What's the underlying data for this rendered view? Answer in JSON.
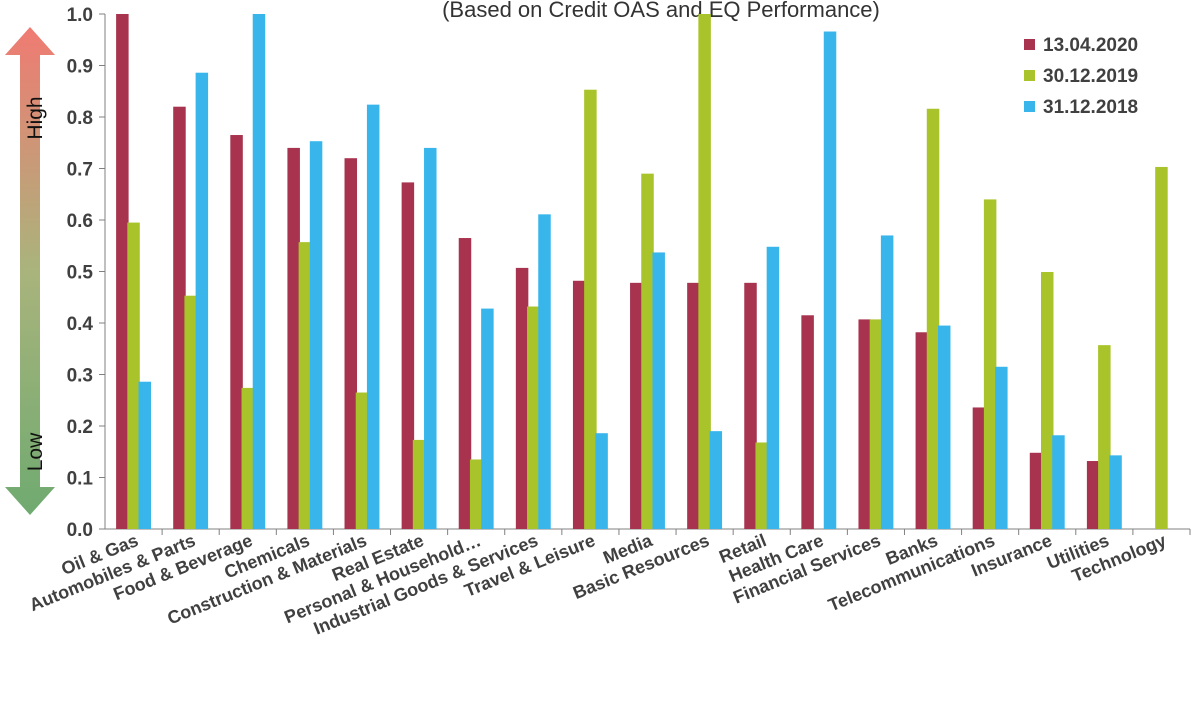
{
  "chart_data": {
    "type": "bar",
    "subtitle": "(Based on Credit OAS and EQ Performance)",
    "ylim": [
      0,
      1.0
    ],
    "yticks": [
      "0.0",
      "0.1",
      "0.2",
      "0.3",
      "0.4",
      "0.5",
      "0.6",
      "0.7",
      "0.8",
      "0.9",
      "1.0"
    ],
    "arrow_labels": {
      "high": "High",
      "low": "Low"
    },
    "legend_position": "top-right",
    "grid": false,
    "categories": [
      "Oil & Gas",
      "Automobiles & Parts",
      "Food & Beverage",
      "Chemicals",
      "Construction & Materials",
      "Real Estate",
      "Personal & Household…",
      "Industrial Goods & Services",
      "Travel & Leisure",
      "Media",
      "Basic Resources",
      "Retail",
      "Health Care",
      "Financial Services",
      "Banks",
      "Telecommunications",
      "Insurance",
      "Utilities",
      "Technology"
    ],
    "series": [
      {
        "name": "13.04.2020",
        "color": "#A8334F",
        "values": [
          1.0,
          0.82,
          0.765,
          0.74,
          0.72,
          0.673,
          0.565,
          0.507,
          0.482,
          0.478,
          0.478,
          0.478,
          0.415,
          0.407,
          0.382,
          0.236,
          0.148,
          0.132,
          0.0
        ]
      },
      {
        "name": "30.12.2019",
        "color": "#A9C42A",
        "values": [
          0.595,
          0.453,
          0.274,
          0.557,
          0.265,
          0.173,
          0.135,
          0.432,
          0.853,
          0.69,
          1.0,
          0.168,
          0.0,
          0.407,
          0.816,
          0.64,
          0.499,
          0.357,
          0.703
        ]
      },
      {
        "name": "31.12.2018",
        "color": "#38B6EC",
        "values": [
          0.286,
          0.886,
          1.0,
          0.753,
          0.824,
          0.74,
          0.428,
          0.611,
          0.186,
          0.537,
          0.19,
          0.548,
          0.966,
          0.57,
          0.395,
          0.315,
          0.182,
          0.143,
          0.0
        ]
      }
    ]
  }
}
